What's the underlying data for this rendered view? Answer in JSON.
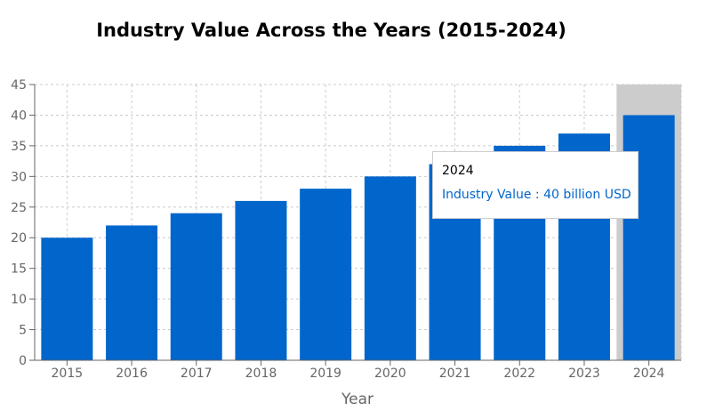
{
  "chart_data": {
    "type": "bar",
    "title": "Industry Value Across the Years (2015-2024)",
    "xlabel": "Year",
    "ylabel": "",
    "categories": [
      "2015",
      "2016",
      "2017",
      "2018",
      "2019",
      "2020",
      "2021",
      "2022",
      "2023",
      "2024"
    ],
    "series": [
      {
        "name": "Industry Value",
        "values": [
          20,
          22,
          24,
          26,
          28,
          30,
          32,
          35,
          37,
          40
        ]
      }
    ],
    "ylim": [
      0,
      45
    ],
    "yticks": [
      0,
      5,
      10,
      15,
      20,
      25,
      30,
      35,
      40,
      45
    ],
    "grid": true,
    "bar_color": "#0066cc",
    "highlight_color": "#cccccc",
    "highlight_category": "2024"
  },
  "tooltip": {
    "label": "2024",
    "value_text": "Industry Value : 40 billion USD"
  }
}
